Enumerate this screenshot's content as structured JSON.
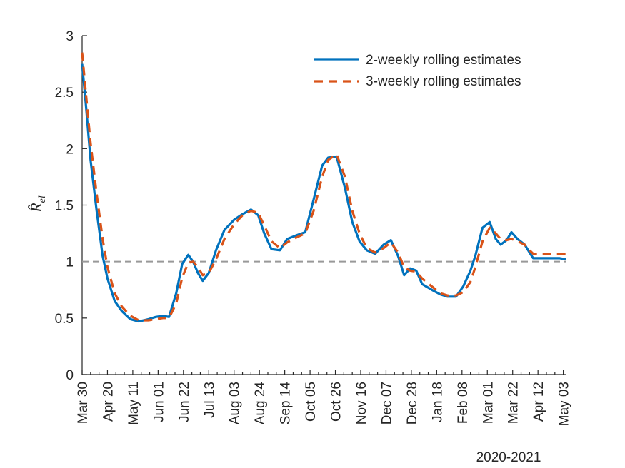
{
  "chart_data": {
    "type": "line",
    "title": "",
    "xlabel": "2020-2021",
    "ylabel": "R̂_el",
    "ylabel_main": "R̂",
    "ylabel_sub": "el",
    "ylim": [
      0,
      3
    ],
    "yticks": [
      0,
      0.5,
      1,
      1.5,
      2,
      2.5,
      3
    ],
    "ytick_labels": [
      "0",
      "0.5",
      "1",
      "1.5",
      "2",
      "2.5",
      "3"
    ],
    "x_categories": [
      "Mar 30",
      "Apr 20",
      "May 11",
      "Jun 01",
      "Jun 22",
      "Jul 13",
      "Aug 03",
      "Aug 24",
      "Sep 14",
      "Oct 05",
      "Oct 26",
      "Nov 16",
      "Dec 07",
      "Dec 28",
      "Jan 18",
      "Feb 08",
      "Mar 01",
      "Mar 22",
      "Apr 12",
      "May 03"
    ],
    "x_range_days": [
      0,
      401
    ],
    "reference_line": {
      "y": 1,
      "style": "dashed",
      "color": "#999999"
    },
    "legend_position": "top-right",
    "legend": [
      "2-weekly rolling estimates",
      "3-weekly rolling estimates"
    ],
    "series": [
      {
        "name": "2-weekly rolling estimates",
        "color": "#0072BD",
        "style": "solid",
        "x": [
          0,
          3,
          7,
          12,
          17,
          21,
          27,
          33,
          40,
          47,
          55,
          61,
          67,
          72,
          78,
          83,
          88,
          92,
          96,
          100,
          105,
          111,
          118,
          126,
          133,
          140,
          146,
          151,
          157,
          164,
          170,
          177,
          185,
          192,
          199,
          204,
          211,
          218,
          224,
          230,
          236,
          243,
          250,
          256,
          262,
          267,
          272,
          277,
          282,
          290,
          297,
          303,
          310,
          316,
          322,
          326,
          332,
          338,
          343,
          347,
          352,
          356,
          361,
          367,
          371,
          374,
          378,
          385,
          390,
          396,
          401
        ],
        "y": [
          2.75,
          2.4,
          1.9,
          1.45,
          1.05,
          0.85,
          0.65,
          0.56,
          0.49,
          0.47,
          0.49,
          0.51,
          0.52,
          0.51,
          0.72,
          0.98,
          1.06,
          1.0,
          0.9,
          0.83,
          0.9,
          1.1,
          1.28,
          1.37,
          1.42,
          1.46,
          1.41,
          1.25,
          1.11,
          1.1,
          1.2,
          1.23,
          1.26,
          1.55,
          1.85,
          1.92,
          1.93,
          1.65,
          1.35,
          1.18,
          1.1,
          1.07,
          1.15,
          1.19,
          1.05,
          0.88,
          0.94,
          0.92,
          0.8,
          0.75,
          0.71,
          0.69,
          0.69,
          0.78,
          0.92,
          1.05,
          1.3,
          1.35,
          1.2,
          1.15,
          1.19,
          1.26,
          1.2,
          1.15,
          1.08,
          1.03,
          1.03,
          1.03,
          1.03,
          1.03,
          1.02
        ]
      },
      {
        "name": "3-weekly rolling estimates",
        "color": "#D95319",
        "style": "dashed",
        "x": [
          0,
          3,
          7,
          12,
          17,
          21,
          27,
          33,
          40,
          47,
          55,
          61,
          67,
          72,
          78,
          83,
          88,
          92,
          96,
          100,
          105,
          111,
          118,
          126,
          133,
          140,
          146,
          151,
          157,
          164,
          170,
          177,
          185,
          192,
          199,
          204,
          211,
          218,
          224,
          230,
          236,
          243,
          250,
          256,
          262,
          267,
          272,
          277,
          282,
          290,
          297,
          303,
          310,
          316,
          322,
          326,
          332,
          338,
          343,
          347,
          352,
          356,
          361,
          367,
          371,
          374,
          378,
          385,
          390,
          396,
          401
        ],
        "y": [
          2.85,
          2.5,
          2.05,
          1.6,
          1.2,
          0.95,
          0.72,
          0.6,
          0.52,
          0.48,
          0.48,
          0.49,
          0.5,
          0.5,
          0.63,
          0.86,
          0.99,
          1.0,
          0.95,
          0.88,
          0.9,
          1.02,
          1.2,
          1.33,
          1.41,
          1.45,
          1.43,
          1.32,
          1.18,
          1.12,
          1.17,
          1.21,
          1.25,
          1.45,
          1.75,
          1.9,
          1.95,
          1.75,
          1.45,
          1.25,
          1.12,
          1.08,
          1.12,
          1.17,
          1.08,
          0.95,
          0.92,
          0.91,
          0.85,
          0.78,
          0.72,
          0.7,
          0.7,
          0.73,
          0.82,
          0.95,
          1.18,
          1.3,
          1.25,
          1.2,
          1.19,
          1.2,
          1.18,
          1.15,
          1.1,
          1.07,
          1.07,
          1.07,
          1.07,
          1.07,
          1.07
        ]
      }
    ]
  }
}
